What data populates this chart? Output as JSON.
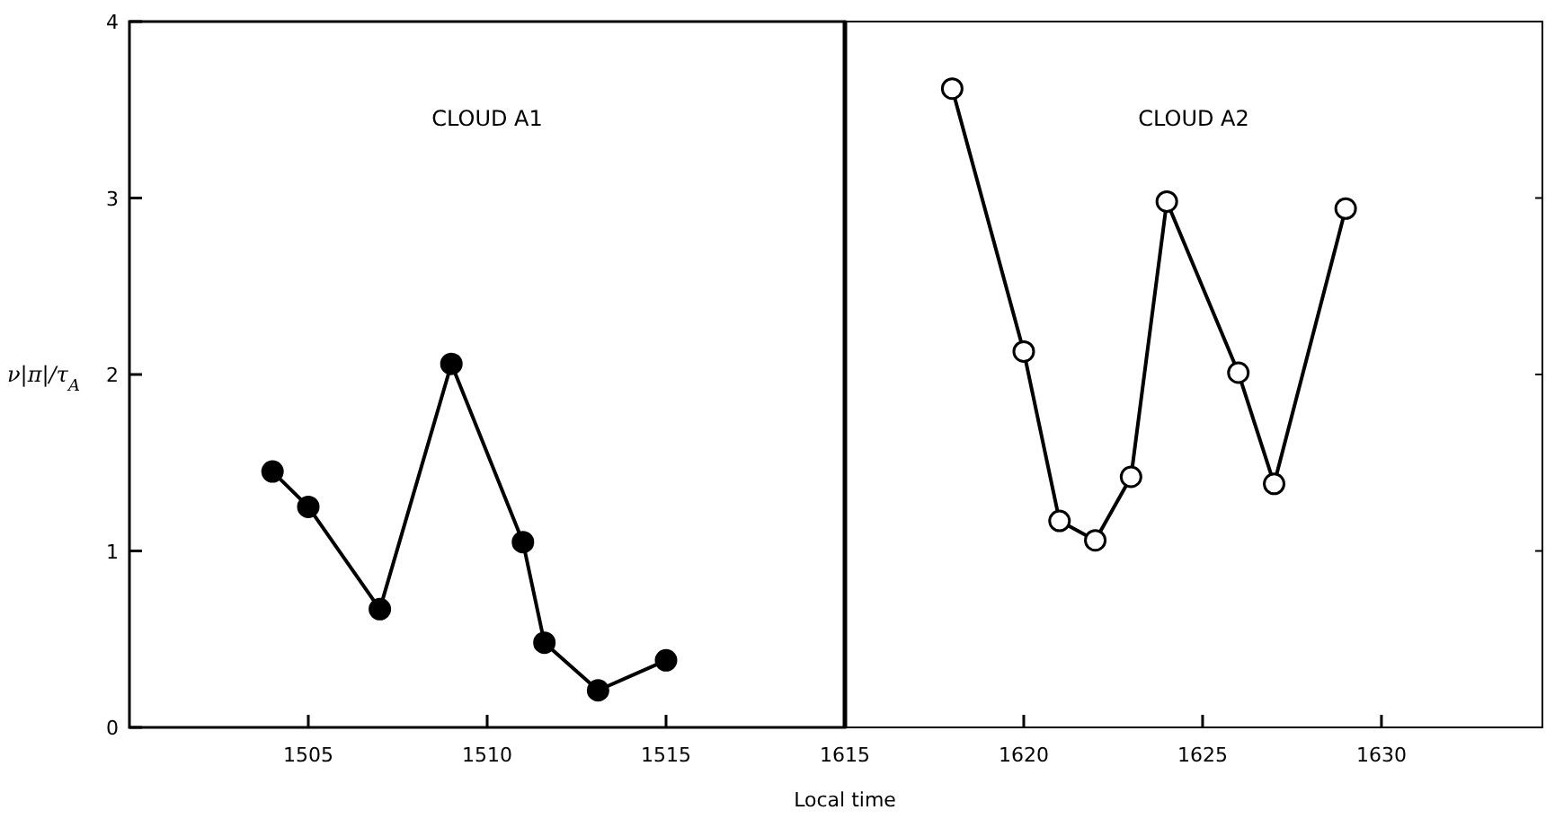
{
  "chart_data": [
    {
      "type": "line",
      "title": "CLOUD A1",
      "ylabel": "ν|π|/τ$_{A}$",
      "xlabel": "Local time",
      "xlim": [
        1500,
        1520
      ],
      "xticks": [
        1505,
        1510,
        1515
      ],
      "ylim": [
        0,
        4
      ],
      "yticks": [
        0,
        1,
        2,
        3,
        4
      ],
      "marker": "circle",
      "grid": false,
      "series": [
        {
          "color": "#000000",
          "x": [
            1504,
            1505,
            1507,
            1509,
            1511,
            1511.6,
            1513.1,
            1515
          ],
          "values": [
            1.45,
            1.25,
            0.67,
            2.06,
            1.05,
            0.48,
            0.21,
            0.38
          ]
        }
      ]
    },
    {
      "type": "line",
      "title": "CLOUD A2",
      "xlim": [
        1615,
        1634.5
      ],
      "xticks": [
        1615,
        1620,
        1625,
        1630
      ],
      "ylim": [
        0,
        4
      ],
      "yticks": [
        0,
        1,
        2,
        3,
        4
      ],
      "tick_labels": "x",
      "marker": "circle-open",
      "grid": false,
      "series": [
        {
          "color": "#000000",
          "x": [
            1618,
            1620,
            1621,
            1622,
            1623,
            1624,
            1626,
            1627,
            1629
          ],
          "values": [
            3.62,
            2.13,
            1.17,
            1.06,
            1.42,
            2.98,
            2.01,
            1.38,
            2.94
          ]
        }
      ]
    }
  ]
}
